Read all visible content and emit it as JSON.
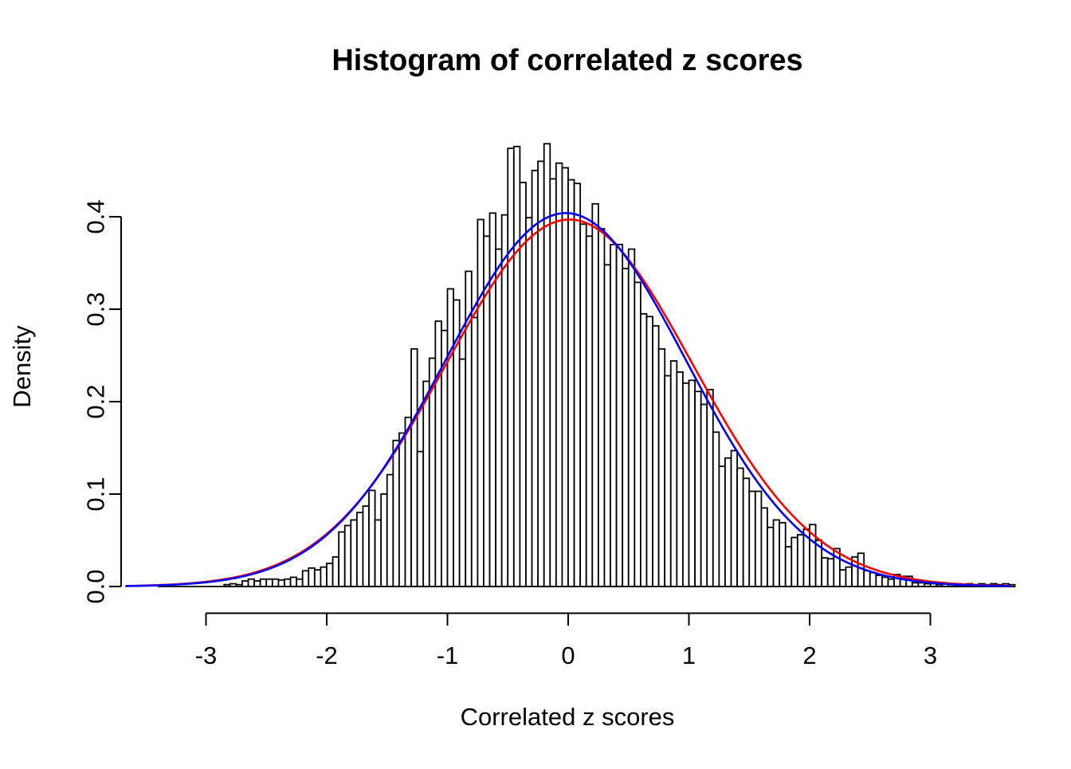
{
  "chart_data": {
    "type": "bar",
    "subtype": "histogram-with-density-curves",
    "title": "Histogram of correlated z scores",
    "xlabel": "Correlated z scores",
    "ylabel": "Density",
    "xlim": [
      -3.7,
      3.7
    ],
    "ylim": [
      0,
      0.485
    ],
    "grid": false,
    "legend": null,
    "x_tick_values": [
      -3,
      -2,
      -1,
      0,
      1,
      2,
      3
    ],
    "x_tick_labels": [
      "-3",
      "-2",
      "-1",
      "0",
      "1",
      "2",
      "3"
    ],
    "y_tick_values": [
      0.0,
      0.1,
      0.2,
      0.3,
      0.4
    ],
    "y_tick_labels": [
      "0.0",
      "0.1",
      "0.2",
      "0.3",
      "0.4"
    ],
    "histogram": {
      "bin_start": -3.4,
      "bin_width": 0.05,
      "bar_fill": "#ffffff",
      "bar_stroke": "#000000",
      "densities": [
        0,
        0,
        0,
        0,
        0,
        0,
        0,
        0,
        0,
        0,
        0,
        0.002,
        0.003,
        0.002,
        0.006,
        0.008,
        0.006,
        0.008,
        0.008,
        0.008,
        0.007,
        0.008,
        0.01,
        0.008,
        0.017,
        0.02,
        0.018,
        0.021,
        0.025,
        0.032,
        0.059,
        0.066,
        0.072,
        0.08,
        0.087,
        0.104,
        0.072,
        0.1,
        0.121,
        0.158,
        0.166,
        0.183,
        0.257,
        0.146,
        0.222,
        0.247,
        0.287,
        0.277,
        0.322,
        0.31,
        0.246,
        0.341,
        0.291,
        0.397,
        0.379,
        0.404,
        0.365,
        0.402,
        0.474,
        0.476,
        0.437,
        0.399,
        0.45,
        0.46,
        0.479,
        0.441,
        0.458,
        0.453,
        0.44,
        0.436,
        0.392,
        0.379,
        0.414,
        0.387,
        0.348,
        0.37,
        0.37,
        0.344,
        0.365,
        0.329,
        0.295,
        0.292,
        0.282,
        0.257,
        0.228,
        0.244,
        0.232,
        0.22,
        0.223,
        0.211,
        0.197,
        0.213,
        0.167,
        0.13,
        0.139,
        0.147,
        0.128,
        0.117,
        0.103,
        0.103,
        0.085,
        0.064,
        0.072,
        0.069,
        0.043,
        0.053,
        0.056,
        0.062,
        0.067,
        0.05,
        0.031,
        0.03,
        0.041,
        0.018,
        0.021,
        0.032,
        0.036,
        0.017,
        0.015,
        0.012,
        0.01,
        0.008,
        0.013,
        0.011,
        0.011,
        0.004,
        0.004,
        0.003,
        0.003,
        0.002,
        0.003,
        0.002,
        0.003,
        0.002,
        0.003,
        0.002,
        0.003,
        0.002,
        0.003,
        0.002,
        0.003,
        0.002
      ]
    },
    "curves": [
      {
        "name": "fitted-normal-curve",
        "color": "#ff0000",
        "mean": 0.01,
        "sd": 1.02,
        "peak_density": 0.397,
        "z_range": [
          -3.66,
          3.67
        ]
      },
      {
        "name": "standard-normal-curve",
        "color": "#0000ff",
        "mean": -0.02,
        "sd": 0.995,
        "peak_density": 0.404,
        "z_range": [
          -3.66,
          3.67
        ]
      }
    ]
  }
}
